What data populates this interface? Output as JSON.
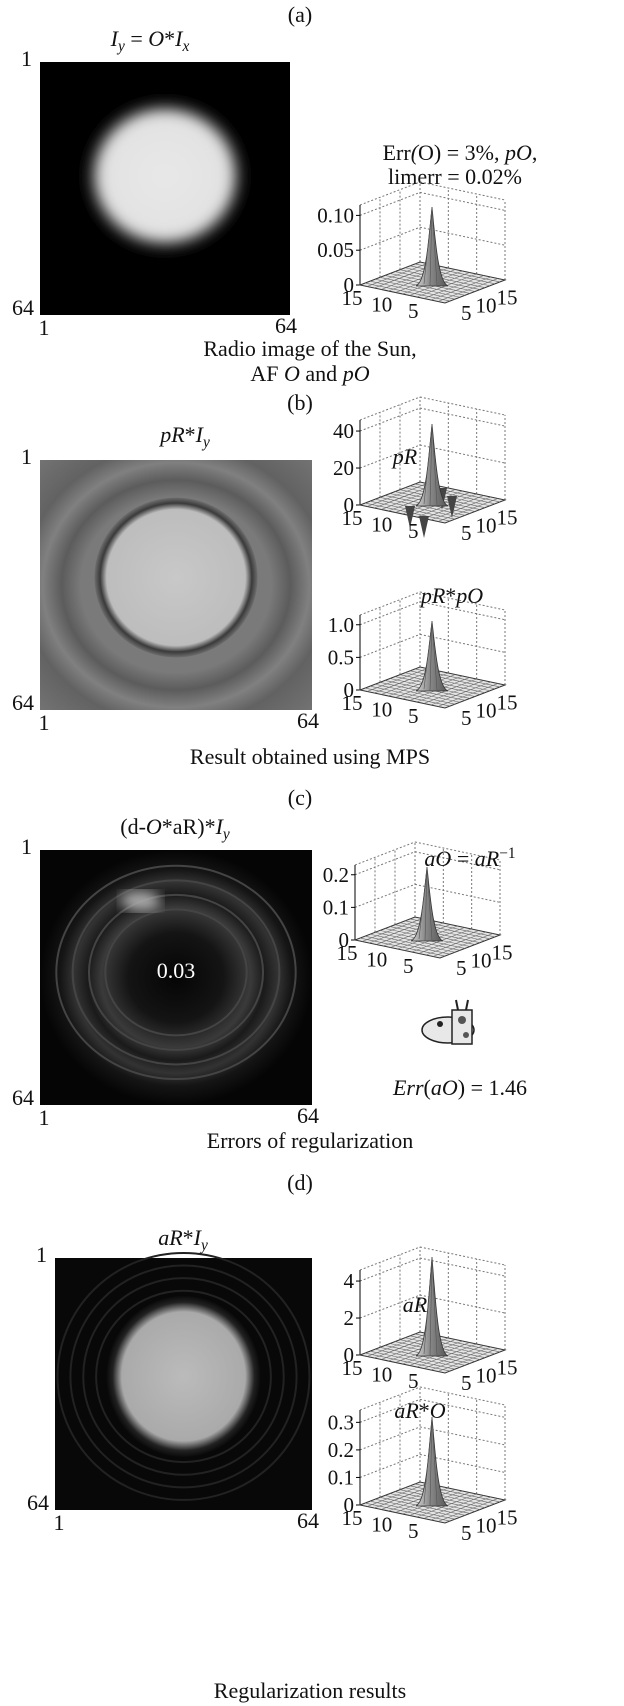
{
  "panels": [
    {
      "label": "(a)",
      "image": {
        "title": [
          "I",
          "y",
          " = ",
          "O",
          "*",
          "I",
          "x"
        ],
        "ticks": [
          "1",
          "64",
          "1",
          "64"
        ]
      },
      "plots": [
        {
          "title": [
            "Err",
            "(",
            "O",
            ") = 3%, ",
            "pO",
            ","
          ],
          "subtitle": "limerr = 0.02%",
          "zticks": [
            "0.10",
            "0.05",
            "0"
          ],
          "base_ticks": [
            "15",
            "10",
            "5",
            "5",
            "10",
            "15"
          ]
        }
      ],
      "caption": [
        "Radio image of the Sun,"
      ],
      "caption2": [
        "AF ",
        "O",
        " and ",
        "pO"
      ]
    },
    {
      "label": "(b)",
      "image": {
        "title": [
          "pR",
          "*",
          "I",
          "y"
        ],
        "ticks": [
          "1",
          "64",
          "1",
          "64"
        ]
      },
      "plots": [
        {
          "title": [
            "pR"
          ],
          "zticks": [
            "40",
            "20",
            "0"
          ],
          "base_ticks": [
            "15",
            "10",
            "5",
            "5",
            "10",
            "15"
          ]
        },
        {
          "title": [
            "pR",
            "*",
            "pO"
          ],
          "zticks": [
            "1.0",
            "0.5",
            "0"
          ],
          "base_ticks": [
            "15",
            "10",
            "5",
            "5",
            "10",
            "15"
          ]
        }
      ],
      "caption": [
        "Result obtained using MPS"
      ]
    },
    {
      "label": "(c)",
      "image": {
        "title": [
          "(d-",
          "O",
          "*",
          "aR",
          ")*",
          "I",
          "y"
        ],
        "ticks": [
          "1",
          "64",
          "1",
          "64"
        ],
        "inset": "0.03"
      },
      "plots": [
        {
          "title": [
            "aO",
            " = ",
            "aR",
            "−1"
          ],
          "zticks": [
            "0.2",
            "0.1",
            "0"
          ],
          "base_ticks": [
            "15",
            "10",
            "5",
            "5",
            "10",
            "15"
          ]
        }
      ],
      "note": [
        "Err",
        "(",
        "aO",
        ") = 1.46"
      ],
      "caption": [
        "Errors of regularization"
      ]
    },
    {
      "label": "(d)",
      "image": {
        "title": [
          "aR",
          "*",
          "I",
          "y"
        ],
        "ticks": [
          "1",
          "64",
          "1",
          "64"
        ]
      },
      "plots": [
        {
          "title": [
            "aR"
          ],
          "zticks": [
            "4",
            "2",
            "0"
          ],
          "base_ticks": [
            "15",
            "10",
            "5",
            "5",
            "10",
            "15"
          ]
        },
        {
          "title": [
            "aR",
            "*",
            "O"
          ],
          "zticks": [
            "0.3",
            "0.2",
            "0.1",
            "0"
          ],
          "base_ticks": [
            "15",
            "10",
            "5",
            "5",
            "10",
            "15"
          ]
        }
      ],
      "caption": [
        "Regularization results"
      ]
    }
  ]
}
